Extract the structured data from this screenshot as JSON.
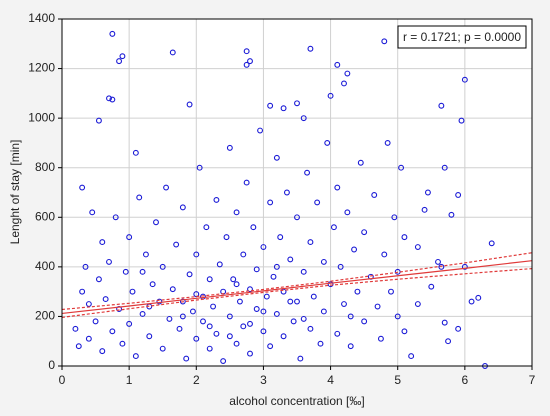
{
  "chart_data": {
    "type": "scatter",
    "x_label": "alcohol concentration [‰]",
    "y_label": "Lenght of stay [min]",
    "annotation": "r = 0.1721; p = 0.0000",
    "color": "#1a1ad6",
    "xlim": [
      0,
      7
    ],
    "xticks": [
      0,
      1,
      2,
      3,
      4,
      5,
      6,
      7
    ],
    "ylim": [
      0,
      1400
    ],
    "yticks": [
      0,
      200,
      400,
      600,
      800,
      1000,
      1200,
      1400
    ],
    "grid": true,
    "x": [
      0.75,
      0.85,
      0.9,
      0.7,
      0.75,
      1.65,
      2.75,
      2.75,
      2.8,
      3.7,
      4.1,
      4.25,
      4.8,
      6.0,
      5.95,
      5.65,
      0.55,
      1.9,
      4.2,
      4.0,
      6.4,
      6.2,
      5.9,
      6.3,
      5.75,
      5.7,
      1.1,
      3.1,
      3.3,
      3.5,
      3.6,
      0.2,
      0.25,
      0.3,
      0.3,
      0.35,
      0.4,
      0.45,
      0.5,
      0.55,
      0.6,
      0.6,
      0.65,
      0.7,
      0.75,
      0.8,
      0.85,
      0.9,
      0.95,
      1.0,
      1.0,
      1.05,
      1.1,
      1.15,
      1.2,
      1.25,
      1.3,
      1.35,
      1.4,
      1.45,
      1.5,
      1.5,
      1.55,
      1.6,
      1.65,
      1.7,
      1.75,
      1.8,
      1.8,
      1.85,
      1.9,
      1.95,
      2.0,
      2.0,
      2.05,
      2.1,
      2.1,
      2.15,
      2.2,
      2.2,
      2.25,
      2.3,
      2.3,
      2.35,
      2.4,
      2.4,
      2.45,
      2.5,
      2.5,
      2.55,
      2.6,
      2.6,
      2.65,
      2.7,
      2.7,
      2.75,
      2.8,
      2.8,
      2.85,
      2.9,
      2.9,
      2.95,
      3.0,
      3.0,
      3.05,
      3.1,
      3.1,
      3.15,
      3.2,
      3.2,
      3.25,
      3.3,
      3.3,
      3.35,
      3.4,
      3.45,
      3.5,
      3.5,
      3.55,
      3.6,
      3.65,
      3.7,
      3.7,
      3.75,
      3.8,
      3.85,
      3.9,
      3.9,
      3.95,
      4.0,
      4.05,
      4.1,
      4.1,
      4.15,
      4.2,
      4.25,
      4.3,
      4.35,
      4.4,
      4.45,
      4.5,
      4.5,
      4.6,
      4.65,
      4.7,
      4.75,
      4.8,
      4.85,
      4.9,
      4.95,
      5.0,
      5.0,
      5.05,
      5.1,
      5.1,
      5.2,
      5.3,
      5.4,
      5.45,
      5.5,
      5.6,
      5.65,
      5.7,
      5.8,
      6.0,
      6.1,
      5.3,
      5.9,
      1.2,
      2.6,
      3.4,
      2.2,
      3.0,
      1.8,
      2.8,
      3.6,
      0.4,
      1.3,
      2.0,
      2.5,
      4.3,
      3.2
    ],
    "values": [
      1340,
      1230,
      1250,
      1080,
      1075,
      1265,
      1270,
      1215,
      1230,
      1280,
      1215,
      1180,
      1310,
      1155,
      990,
      1050,
      990,
      1055,
      1140,
      1090,
      495,
      275,
      150,
      0,
      100,
      175,
      860,
      1050,
      1040,
      1060,
      1000,
      150,
      80,
      300,
      720,
      400,
      250,
      620,
      180,
      350,
      60,
      500,
      270,
      420,
      140,
      600,
      230,
      90,
      380,
      170,
      520,
      300,
      40,
      680,
      210,
      450,
      120,
      330,
      580,
      260,
      70,
      400,
      720,
      190,
      310,
      490,
      150,
      260,
      640,
      30,
      370,
      220,
      110,
      450,
      800,
      280,
      180,
      560,
      70,
      350,
      240,
      670,
      130,
      410,
      300,
      20,
      520,
      200,
      880,
      350,
      90,
      620,
      260,
      450,
      160,
      740,
      310,
      50,
      560,
      230,
      390,
      950,
      140,
      480,
      280,
      660,
      80,
      360,
      210,
      840,
      520,
      120,
      300,
      700,
      430,
      180,
      600,
      260,
      30,
      380,
      780,
      150,
      500,
      280,
      660,
      90,
      420,
      220,
      900,
      330,
      560,
      130,
      720,
      400,
      250,
      620,
      80,
      470,
      300,
      820,
      180,
      540,
      360,
      690,
      240,
      110,
      450,
      900,
      300,
      600,
      200,
      380,
      800,
      520,
      140,
      40,
      250,
      630,
      700,
      320,
      420,
      400,
      800,
      610,
      400,
      260,
      480,
      690,
      380,
      330,
      260,
      160,
      220,
      200,
      170,
      190,
      110,
      240,
      290,
      120,
      200,
      400
    ],
    "fit": {
      "color": "#e03a3a",
      "x": [
        0,
        1,
        2,
        3,
        4,
        5,
        6,
        7
      ],
      "values": [
        212,
        242,
        273,
        303,
        334,
        364,
        394,
        425
      ],
      "lower": [
        196,
        231,
        266,
        297,
        326,
        350,
        372,
        393
      ],
      "upper": [
        228,
        253,
        280,
        309,
        342,
        378,
        416,
        457
      ]
    }
  }
}
